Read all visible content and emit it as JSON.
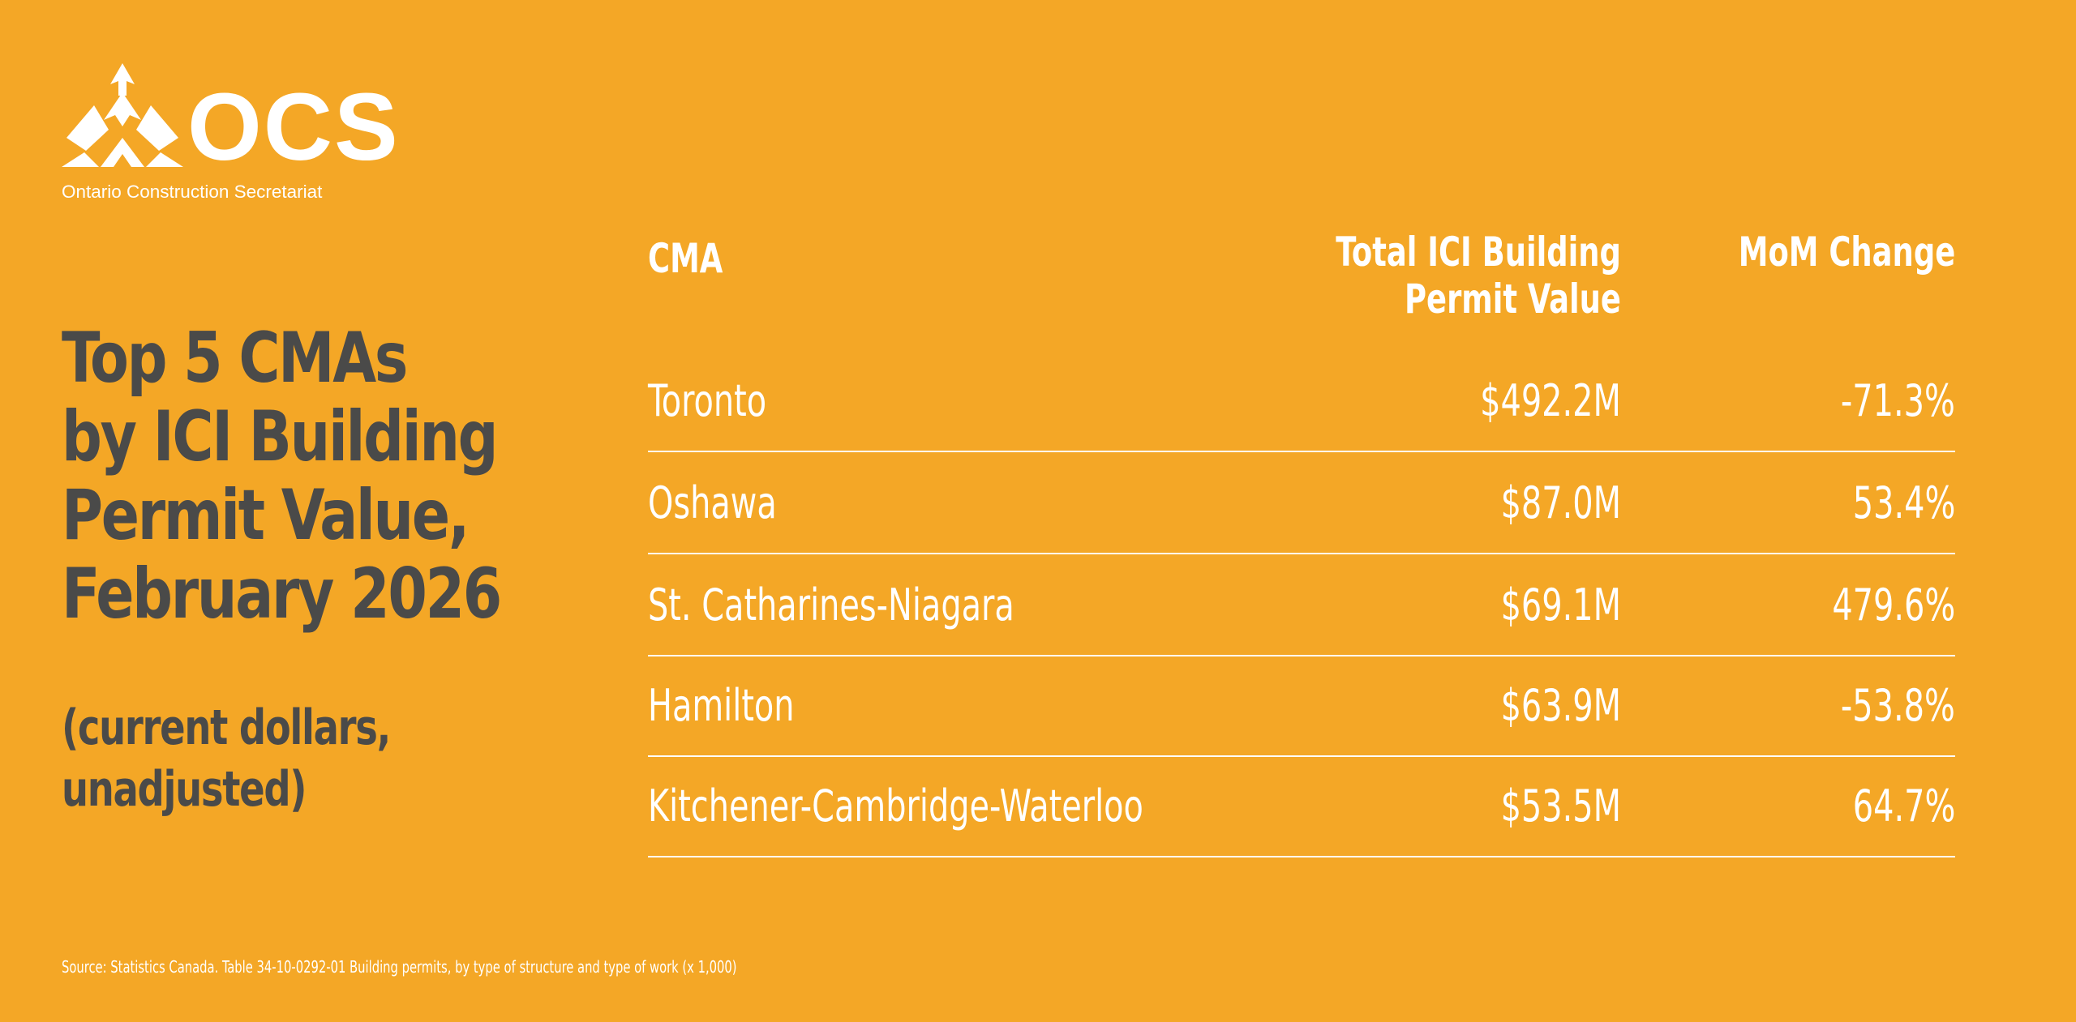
{
  "brand": {
    "name": "OCS",
    "full_name": "Ontario Construction Secretariat",
    "background_color": "#F4A726",
    "headline_color": "#4A4A49",
    "text_color": "#FFFFFF"
  },
  "headline": {
    "lines": [
      "Top 5 CMAs",
      "by ICI Building",
      "Permit Value,",
      "February 2026"
    ],
    "sub_lines": [
      "(current dollars,",
      "unadjusted)"
    ]
  },
  "chart_data": {
    "type": "table",
    "columns": [
      "CMA",
      "Total ICI Building Permit Value",
      "MoM Change"
    ],
    "column_header_lines": [
      [
        "CMA"
      ],
      [
        "Total ICI Building",
        "Permit Value"
      ],
      [
        "MoM Change"
      ]
    ],
    "rows": [
      {
        "cma": "Toronto",
        "value": "$492.2M",
        "mom": "-71.3%"
      },
      {
        "cma": "Oshawa",
        "value": "$87.0M",
        "mom": "53.4%"
      },
      {
        "cma": "St. Catharines-Niagara",
        "value": "$69.1M",
        "mom": "479.6%"
      },
      {
        "cma": "Hamilton",
        "value": "$63.9M",
        "mom": "-53.8%"
      },
      {
        "cma": "Kitchener-Cambridge-Waterloo",
        "value": "$53.5M",
        "mom": "64.7%"
      }
    ]
  },
  "source": "Source: Statistics Canada. Table 34-10-0292-01  Building permits, by type of structure and type of work (x 1,000)"
}
